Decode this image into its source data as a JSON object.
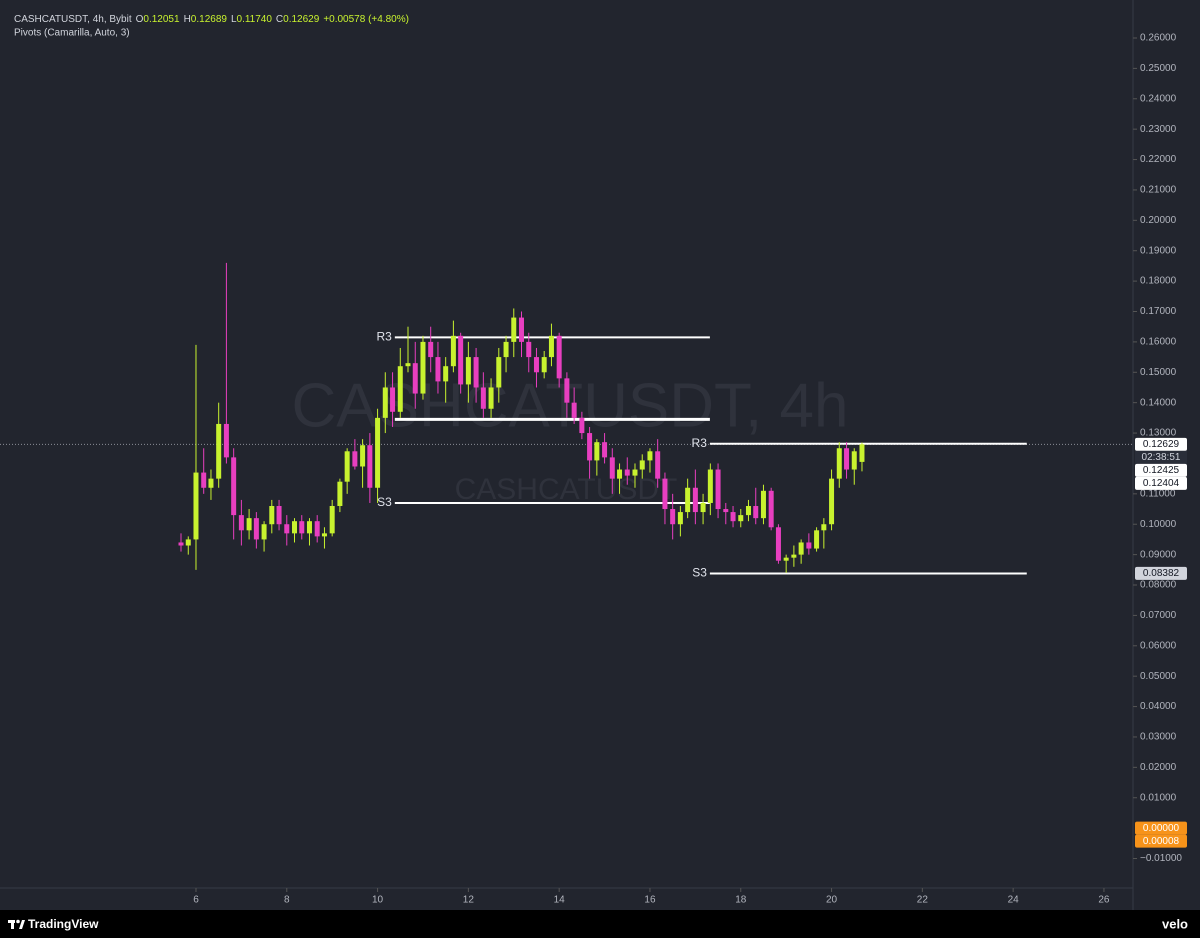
{
  "chart_data": {
    "type": "candlestick",
    "symbol": "CASHCATUSDT, 4h, Bybit",
    "legend": [
      {
        "label": "O",
        "value": "0.12051"
      },
      {
        "label": "H",
        "value": "0.12689"
      },
      {
        "label": "L",
        "value": "0.11740"
      },
      {
        "label": "C",
        "value": "0.12629"
      }
    ],
    "change": "+0.00578 (+4.80%)",
    "indicator": "Pivots (Camarilla, Auto, 3)",
    "watermark": "CASHCATUSDT, 4h",
    "watermark_sub": "CASHCATUSDT",
    "up_color": "#c8f22f",
    "down_color": "#e83fc0",
    "x": [
      5.67,
      5.83,
      6,
      6.17,
      6.33,
      6.5,
      6.67,
      6.83,
      7,
      7.17,
      7.33,
      7.5,
      7.67,
      7.83,
      8,
      8.17,
      8.33,
      8.5,
      8.67,
      8.83,
      9,
      9.17,
      9.33,
      9.5,
      9.67,
      9.83,
      10,
      10.17,
      10.33,
      10.5,
      10.67,
      10.83,
      11,
      11.17,
      11.33,
      11.5,
      11.67,
      11.83,
      12,
      12.17,
      12.33,
      12.5,
      12.67,
      12.83,
      13,
      13.17,
      13.33,
      13.5,
      13.67,
      13.83,
      14,
      14.17,
      14.33,
      14.5,
      14.67,
      14.83,
      15,
      15.17,
      15.33,
      15.5,
      15.67,
      15.83,
      16,
      16.17,
      16.33,
      16.5,
      16.67,
      16.83,
      17,
      17.17,
      17.33,
      17.5,
      17.67,
      17.83,
      18,
      18.17,
      18.33,
      18.5,
      18.67,
      18.83,
      19,
      19.17,
      19.33,
      19.5,
      19.67,
      19.83,
      20,
      20.17,
      20.33,
      20.5,
      20.67
    ],
    "open": [
      0.094,
      0.093,
      0.095,
      0.117,
      0.112,
      0.115,
      0.133,
      0.122,
      0.103,
      0.098,
      0.102,
      0.095,
      0.1,
      0.106,
      0.1,
      0.097,
      0.101,
      0.097,
      0.101,
      0.096,
      0.097,
      0.106,
      0.114,
      0.124,
      0.119,
      0.126,
      0.112,
      0.135,
      0.145,
      0.137,
      0.152,
      0.153,
      0.143,
      0.16,
      0.155,
      0.147,
      0.152,
      0.162,
      0.146,
      0.155,
      0.145,
      0.138,
      0.145,
      0.155,
      0.16,
      0.168,
      0.16,
      0.155,
      0.15,
      0.155,
      0.162,
      0.148,
      0.14,
      0.135,
      0.13,
      0.121,
      0.127,
      0.122,
      0.115,
      0.118,
      0.116,
      0.118,
      0.121,
      0.124,
      0.115,
      0.105,
      0.1,
      0.104,
      0.112,
      0.104,
      0.107,
      0.118,
      0.105,
      0.104,
      0.101,
      0.103,
      0.106,
      0.102,
      0.111,
      0.099,
      0.088,
      0.089,
      0.09,
      0.094,
      0.092,
      0.098,
      0.1,
      0.115,
      0.125,
      0.118,
      0.12051
    ],
    "high": [
      0.097,
      0.096,
      0.159,
      0.125,
      0.118,
      0.14,
      0.186,
      0.125,
      0.108,
      0.105,
      0.104,
      0.101,
      0.108,
      0.108,
      0.103,
      0.102,
      0.103,
      0.102,
      0.103,
      0.099,
      0.108,
      0.115,
      0.125,
      0.128,
      0.128,
      0.13,
      0.138,
      0.15,
      0.15,
      0.158,
      0.165,
      0.16,
      0.162,
      0.165,
      0.16,
      0.155,
      0.167,
      0.163,
      0.16,
      0.158,
      0.15,
      0.148,
      0.158,
      0.162,
      0.171,
      0.17,
      0.163,
      0.158,
      0.157,
      0.166,
      0.163,
      0.15,
      0.145,
      0.137,
      0.132,
      0.128,
      0.13,
      0.125,
      0.12,
      0.122,
      0.12,
      0.123,
      0.125,
      0.128,
      0.117,
      0.11,
      0.106,
      0.115,
      0.118,
      0.11,
      0.12,
      0.12,
      0.107,
      0.106,
      0.105,
      0.108,
      0.112,
      0.113,
      0.112,
      0.1,
      0.09,
      0.093,
      0.095,
      0.097,
      0.099,
      0.102,
      0.118,
      0.127,
      0.127,
      0.125,
      0.12689
    ],
    "low": [
      0.091,
      0.09,
      0.085,
      0.11,
      0.108,
      0.112,
      0.12,
      0.095,
      0.093,
      0.095,
      0.092,
      0.091,
      0.097,
      0.098,
      0.093,
      0.094,
      0.095,
      0.093,
      0.094,
      0.092,
      0.096,
      0.104,
      0.11,
      0.118,
      0.112,
      0.107,
      0.107,
      0.13,
      0.132,
      0.135,
      0.15,
      0.138,
      0.141,
      0.15,
      0.143,
      0.14,
      0.15,
      0.143,
      0.14,
      0.14,
      0.135,
      0.135,
      0.14,
      0.15,
      0.155,
      0.155,
      0.15,
      0.145,
      0.148,
      0.152,
      0.145,
      0.135,
      0.133,
      0.128,
      0.115,
      0.116,
      0.12,
      0.11,
      0.11,
      0.113,
      0.112,
      0.115,
      0.117,
      0.112,
      0.1,
      0.095,
      0.096,
      0.102,
      0.1,
      0.1,
      0.103,
      0.102,
      0.1,
      0.099,
      0.099,
      0.101,
      0.1,
      0.1,
      0.098,
      0.087,
      0.084,
      0.086,
      0.087,
      0.09,
      0.091,
      0.092,
      0.098,
      0.112,
      0.115,
      0.113,
      0.1174
    ],
    "close": [
      0.093,
      0.095,
      0.117,
      0.112,
      0.115,
      0.133,
      0.122,
      0.103,
      0.098,
      0.102,
      0.095,
      0.1,
      0.106,
      0.1,
      0.097,
      0.101,
      0.097,
      0.101,
      0.096,
      0.097,
      0.106,
      0.114,
      0.124,
      0.119,
      0.126,
      0.112,
      0.135,
      0.145,
      0.137,
      0.152,
      0.153,
      0.143,
      0.16,
      0.155,
      0.147,
      0.152,
      0.162,
      0.146,
      0.155,
      0.145,
      0.138,
      0.145,
      0.155,
      0.16,
      0.168,
      0.16,
      0.155,
      0.15,
      0.155,
      0.162,
      0.148,
      0.14,
      0.135,
      0.13,
      0.121,
      0.127,
      0.122,
      0.115,
      0.118,
      0.116,
      0.118,
      0.121,
      0.124,
      0.115,
      0.105,
      0.1,
      0.104,
      0.112,
      0.104,
      0.107,
      0.118,
      0.105,
      0.104,
      0.101,
      0.103,
      0.106,
      0.102,
      0.111,
      0.099,
      0.088,
      0.089,
      0.09,
      0.094,
      0.092,
      0.098,
      0.1,
      0.115,
      0.125,
      0.118,
      0.124,
      0.12629
    ],
    "xlim": [
      1.683,
      26.64
    ],
    "ylim": [
      -0.0197,
      0.2725
    ],
    "xticks": [
      6,
      8,
      10,
      12,
      14,
      16,
      18,
      20,
      22,
      24,
      26
    ],
    "yticks": [
      {
        "value": 0.26,
        "label": "0.26000"
      },
      {
        "value": 0.25,
        "label": "0.25000"
      },
      {
        "value": 0.24,
        "label": "0.24000"
      },
      {
        "value": 0.23,
        "label": "0.23000"
      },
      {
        "value": 0.22,
        "label": "0.22000"
      },
      {
        "value": 0.21,
        "label": "0.21000"
      },
      {
        "value": 0.2,
        "label": "0.20000"
      },
      {
        "value": 0.19,
        "label": "0.19000"
      },
      {
        "value": 0.18,
        "label": "0.18000"
      },
      {
        "value": 0.17,
        "label": "0.17000"
      },
      {
        "value": 0.16,
        "label": "0.16000"
      },
      {
        "value": 0.15,
        "label": "0.15000"
      },
      {
        "value": 0.14,
        "label": "0.14000"
      },
      {
        "value": 0.13,
        "label": "0.13000"
      },
      {
        "value": 0.11,
        "label": "0.11000"
      },
      {
        "value": 0.1,
        "label": "0.10000"
      },
      {
        "value": 0.09,
        "label": "0.09000"
      },
      {
        "value": 0.08,
        "label": "0.08000"
      },
      {
        "value": 0.07,
        "label": "0.07000"
      },
      {
        "value": 0.06,
        "label": "0.06000"
      },
      {
        "value": 0.05,
        "label": "0.05000"
      },
      {
        "value": 0.04,
        "label": "0.04000"
      },
      {
        "value": 0.03,
        "label": "0.03000"
      },
      {
        "value": 0.02,
        "label": "0.02000"
      },
      {
        "value": 0.01,
        "label": "0.01000"
      },
      {
        "value": -0.01,
        "label": "−0.01000"
      }
    ],
    "pivots": [
      {
        "label": "R3",
        "value": 0.1615,
        "x0": 10.38,
        "x1": 17.32
      },
      {
        "value": 0.1345,
        "x0": 10.38,
        "x1": 17.32
      },
      {
        "label": "S3",
        "value": 0.107,
        "x0": 10.38,
        "x1": 17.32
      },
      {
        "label": "R3",
        "value": 0.1265,
        "x0": 17.32,
        "x1": 24.3
      },
      {
        "label": "S3",
        "value": 0.0838,
        "x0": 17.32,
        "x1": 24.3
      }
    ],
    "price_labels": [
      {
        "value": 0.12629,
        "label": "0.12629",
        "sub": "02:38:51",
        "bg": "#ffffff",
        "fg": "#131722"
      },
      {
        "value": 0.12425,
        "label": "0.12425",
        "bg": "#ffffff",
        "fg": "#131722"
      },
      {
        "value": 0.12404,
        "label": "0.12404",
        "bg": "#ffffff",
        "fg": "#131722"
      },
      {
        "value": 0.08382,
        "label": "0.08382",
        "bg": "#d1d4dc",
        "fg": "#131722"
      },
      {
        "value": 0,
        "label": "0.00000",
        "bg": "#f7931a",
        "fg": "#ffffff"
      },
      {
        "value": 8e-05,
        "label": "0.00008",
        "bg": "#f7931a",
        "fg": "#ffffff"
      }
    ],
    "footer_brand": "TradingView",
    "footer_source": "velo"
  }
}
